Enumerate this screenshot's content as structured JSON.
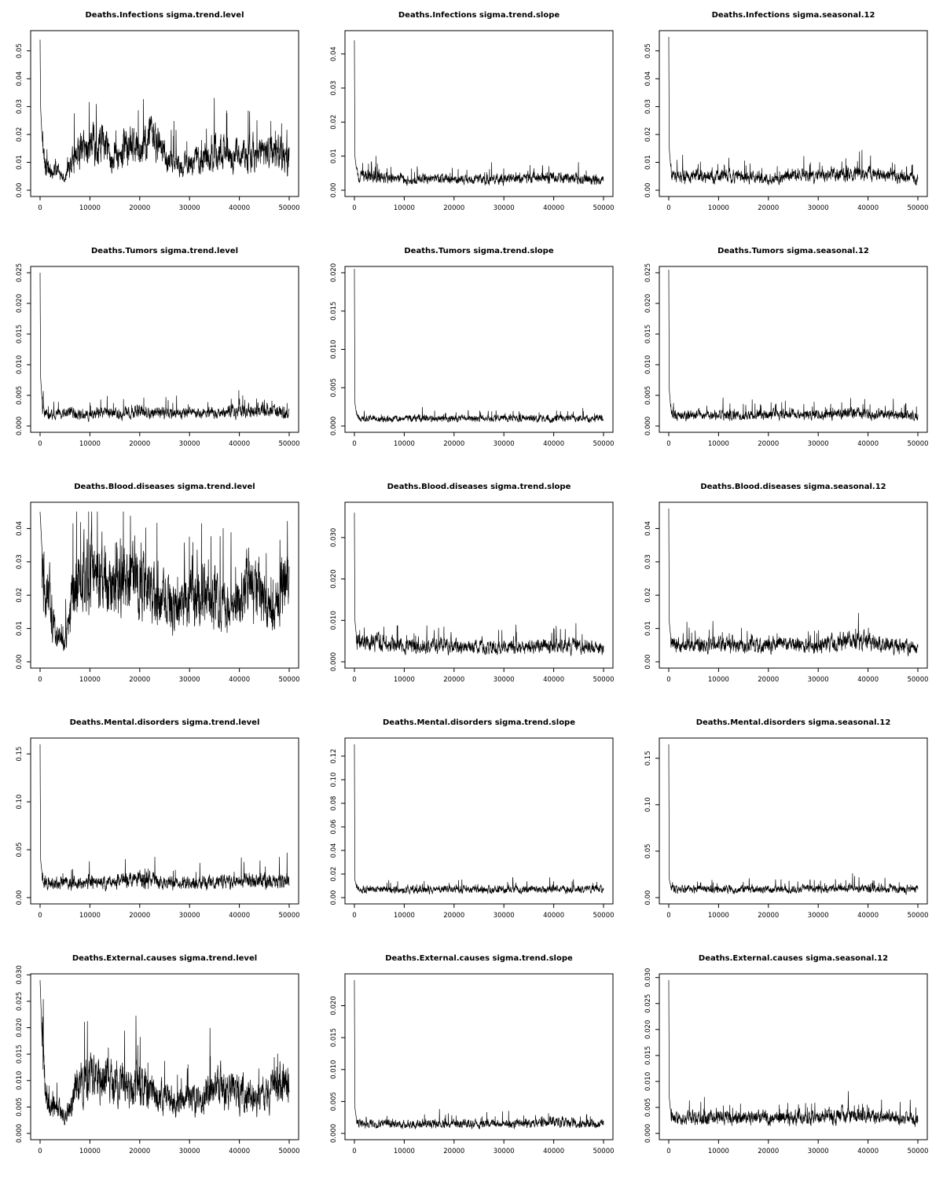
{
  "chart_data": [
    {
      "type": "line",
      "title": "Deaths.Infections sigma.trend.level",
      "xlim": [
        0,
        50000
      ],
      "ylim": [
        0,
        0.055
      ],
      "xticks": [
        "0",
        "10000",
        "20000",
        "30000",
        "40000",
        "50000"
      ],
      "yticks": [
        "0.00",
        "0.01",
        "0.02",
        "0.03",
        "0.04",
        "0.05"
      ],
      "series": [
        {
          "x": [
            0,
            100,
            500,
            1000,
            2000,
            3000,
            4000,
            5000,
            6000,
            7000,
            8000,
            10000,
            12000,
            14000,
            16000,
            18000,
            20000,
            22000,
            24000,
            26000,
            28000,
            30000,
            32000,
            34000,
            36000,
            38000,
            40000,
            42000,
            44000,
            46000,
            48000,
            49000,
            50000
          ],
          "y": [
            0.054,
            0.03,
            0.015,
            0.01,
            0.006,
            0.009,
            0.005,
            0.004,
            0.01,
            0.013,
            0.015,
            0.016,
            0.018,
            0.012,
            0.014,
            0.016,
            0.015,
            0.018,
            0.016,
            0.01,
            0.01,
            0.008,
            0.012,
            0.012,
            0.014,
            0.013,
            0.013,
            0.014,
            0.012,
            0.013,
            0.015,
            0.012,
            0.012
          ]
        }
      ]
    },
    {
      "type": "line",
      "title": "Deaths.Infections sigma.trend.slope",
      "xlim": [
        0,
        50000
      ],
      "ylim": [
        0,
        0.045
      ],
      "xticks": [
        "0",
        "10000",
        "20000",
        "30000",
        "40000",
        "50000"
      ],
      "yticks": [
        "0.00",
        "0.01",
        "0.02",
        "0.03",
        "0.04"
      ],
      "series": [
        {
          "x": [
            0,
            100,
            500,
            1000,
            5000,
            10000,
            15000,
            20000,
            25000,
            30000,
            35000,
            40000,
            45000,
            50000
          ],
          "y": [
            0.044,
            0.01,
            0.005,
            0.004,
            0.004,
            0.003,
            0.0035,
            0.003,
            0.003,
            0.0035,
            0.0035,
            0.004,
            0.0035,
            0.003
          ]
        }
      ]
    },
    {
      "type": "line",
      "title": "Deaths.Infections sigma.seasonal.12",
      "xlim": [
        0,
        50000
      ],
      "ylim": [
        0,
        0.055
      ],
      "xticks": [
        "0",
        "10000",
        "20000",
        "30000",
        "40000",
        "50000"
      ],
      "yticks": [
        "0.00",
        "0.01",
        "0.02",
        "0.03",
        "0.04",
        "0.05"
      ],
      "series": [
        {
          "x": [
            0,
            100,
            500,
            1000,
            5000,
            10000,
            15000,
            20000,
            25000,
            30000,
            35000,
            40000,
            45000,
            50000
          ],
          "y": [
            0.055,
            0.015,
            0.006,
            0.005,
            0.005,
            0.005,
            0.005,
            0.004,
            0.005,
            0.005,
            0.006,
            0.006,
            0.005,
            0.004
          ]
        }
      ]
    },
    {
      "type": "line",
      "title": "Deaths.Tumors sigma.trend.level",
      "xlim": [
        0,
        50000
      ],
      "ylim": [
        0,
        0.025
      ],
      "xticks": [
        "0",
        "10000",
        "20000",
        "30000",
        "40000",
        "50000"
      ],
      "yticks": [
        "0.000",
        "0.005",
        "0.010",
        "0.015",
        "0.020",
        "0.025"
      ],
      "series": [
        {
          "x": [
            0,
            100,
            500,
            1000,
            5000,
            10000,
            15000,
            20000,
            25000,
            30000,
            35000,
            40000,
            45000,
            50000
          ],
          "y": [
            0.025,
            0.008,
            0.003,
            0.002,
            0.002,
            0.002,
            0.002,
            0.0025,
            0.002,
            0.002,
            0.002,
            0.0025,
            0.0025,
            0.002
          ]
        }
      ]
    },
    {
      "type": "line",
      "title": "Deaths.Tumors sigma.trend.slope",
      "xlim": [
        0,
        50000
      ],
      "ylim": [
        0,
        0.02
      ],
      "xticks": [
        "0",
        "10000",
        "20000",
        "30000",
        "40000",
        "50000"
      ],
      "yticks": [
        "0.000",
        "0.005",
        "0.010",
        "0.015",
        "0.020"
      ],
      "series": [
        {
          "x": [
            0,
            100,
            500,
            1000,
            5000,
            10000,
            15000,
            20000,
            25000,
            30000,
            35000,
            40000,
            45000,
            50000
          ],
          "y": [
            0.0205,
            0.003,
            0.0012,
            0.001,
            0.001,
            0.001,
            0.001,
            0.001,
            0.001,
            0.001,
            0.001,
            0.001,
            0.001,
            0.001
          ]
        }
      ]
    },
    {
      "type": "line",
      "title": "Deaths.Tumors sigma.seasonal.12",
      "xlim": [
        0,
        50000
      ],
      "ylim": [
        0,
        0.025
      ],
      "xticks": [
        "0",
        "10000",
        "20000",
        "30000",
        "40000",
        "50000"
      ],
      "yticks": [
        "0.000",
        "0.005",
        "0.010",
        "0.015",
        "0.020",
        "0.025"
      ],
      "series": [
        {
          "x": [
            0,
            100,
            500,
            1000,
            5000,
            10000,
            15000,
            20000,
            25000,
            30000,
            35000,
            40000,
            45000,
            50000
          ],
          "y": [
            0.0255,
            0.006,
            0.002,
            0.0018,
            0.0018,
            0.0018,
            0.0018,
            0.0018,
            0.0018,
            0.0018,
            0.002,
            0.002,
            0.0018,
            0.0016
          ]
        }
      ]
    },
    {
      "type": "line",
      "title": "Deaths.Blood.diseases sigma.trend.level",
      "xlim": [
        0,
        50000
      ],
      "ylim": [
        0,
        0.046
      ],
      "xticks": [
        "0",
        "10000",
        "20000",
        "30000",
        "40000",
        "50000"
      ],
      "yticks": [
        "0.00",
        "0.01",
        "0.02",
        "0.03",
        "0.04"
      ],
      "series": [
        {
          "x": [
            0,
            500,
            1000,
            2000,
            3000,
            4000,
            5000,
            6000,
            7000,
            8000,
            10000,
            12000,
            14000,
            16000,
            18000,
            20000,
            22000,
            24000,
            26000,
            28000,
            30000,
            32000,
            34000,
            36000,
            38000,
            40000,
            42000,
            44000,
            46000,
            48000,
            49000,
            50000
          ],
          "y": [
            0.045,
            0.03,
            0.018,
            0.02,
            0.01,
            0.008,
            0.006,
            0.015,
            0.022,
            0.025,
            0.026,
            0.024,
            0.022,
            0.025,
            0.023,
            0.024,
            0.022,
            0.02,
            0.018,
            0.015,
            0.022,
            0.02,
            0.018,
            0.02,
            0.015,
            0.018,
            0.024,
            0.022,
            0.015,
            0.02,
            0.025,
            0.02
          ]
        }
      ]
    },
    {
      "type": "line",
      "title": "Deaths.Blood.diseases sigma.trend.slope",
      "xlim": [
        0,
        50000
      ],
      "ylim": [
        0,
        0.037
      ],
      "xticks": [
        "0",
        "10000",
        "20000",
        "30000",
        "40000",
        "50000"
      ],
      "yticks": [
        "0.000",
        "0.010",
        "0.020",
        "0.030"
      ],
      "series": [
        {
          "x": [
            0,
            100,
            500,
            1000,
            5000,
            10000,
            15000,
            20000,
            25000,
            30000,
            35000,
            40000,
            45000,
            50000
          ],
          "y": [
            0.036,
            0.01,
            0.005,
            0.004,
            0.005,
            0.004,
            0.004,
            0.004,
            0.0035,
            0.0035,
            0.0035,
            0.004,
            0.004,
            0.003
          ]
        }
      ]
    },
    {
      "type": "line",
      "title": "Deaths.Blood.diseases sigma.seasonal.12",
      "xlim": [
        0,
        50000
      ],
      "ylim": [
        0,
        0.046
      ],
      "xticks": [
        "0",
        "10000",
        "20000",
        "30000",
        "40000",
        "50000"
      ],
      "yticks": [
        "0.00",
        "0.01",
        "0.02",
        "0.03",
        "0.04"
      ],
      "series": [
        {
          "x": [
            0,
            100,
            500,
            1000,
            5000,
            10000,
            15000,
            20000,
            25000,
            30000,
            35000,
            40000,
            45000,
            50000
          ],
          "y": [
            0.046,
            0.012,
            0.006,
            0.005,
            0.005,
            0.005,
            0.005,
            0.005,
            0.005,
            0.005,
            0.006,
            0.006,
            0.005,
            0.004
          ]
        }
      ]
    },
    {
      "type": "line",
      "title": "Deaths.Mental.disorders sigma.trend.level",
      "xlim": [
        0,
        50000
      ],
      "ylim": [
        0,
        0.16
      ],
      "xticks": [
        "0",
        "10000",
        "20000",
        "30000",
        "40000",
        "50000"
      ],
      "yticks": [
        "0.00",
        "0.05",
        "0.10",
        "0.15"
      ],
      "series": [
        {
          "x": [
            0,
            100,
            500,
            1000,
            5000,
            10000,
            15000,
            20000,
            25000,
            30000,
            35000,
            40000,
            45000,
            50000
          ],
          "y": [
            0.16,
            0.04,
            0.02,
            0.015,
            0.015,
            0.016,
            0.016,
            0.02,
            0.016,
            0.015,
            0.016,
            0.017,
            0.017,
            0.018
          ]
        }
      ]
    },
    {
      "type": "line",
      "title": "Deaths.Mental.disorders sigma.trend.slope",
      "xlim": [
        0,
        50000
      ],
      "ylim": [
        0,
        0.13
      ],
      "xticks": [
        "0",
        "10000",
        "20000",
        "30000",
        "40000",
        "50000"
      ],
      "yticks": [
        "0.00",
        "0.02",
        "0.04",
        "0.06",
        "0.08",
        "0.10",
        "0.12"
      ],
      "series": [
        {
          "x": [
            0,
            100,
            500,
            1000,
            5000,
            10000,
            15000,
            20000,
            25000,
            30000,
            35000,
            40000,
            45000,
            50000
          ],
          "y": [
            0.13,
            0.015,
            0.008,
            0.007,
            0.007,
            0.007,
            0.007,
            0.007,
            0.007,
            0.007,
            0.007,
            0.007,
            0.007,
            0.007
          ]
        }
      ]
    },
    {
      "type": "line",
      "title": "Deaths.Mental.disorders sigma.seasonal.12",
      "xlim": [
        0,
        50000
      ],
      "ylim": [
        0,
        0.165
      ],
      "xticks": [
        "0",
        "10000",
        "20000",
        "30000",
        "40000",
        "50000"
      ],
      "yticks": [
        "0.00",
        "0.05",
        "0.10",
        "0.15"
      ],
      "series": [
        {
          "x": [
            0,
            100,
            500,
            1000,
            5000,
            10000,
            15000,
            20000,
            25000,
            30000,
            35000,
            40000,
            45000,
            50000
          ],
          "y": [
            0.165,
            0.02,
            0.01,
            0.009,
            0.009,
            0.009,
            0.009,
            0.009,
            0.009,
            0.009,
            0.01,
            0.01,
            0.009,
            0.009
          ]
        }
      ]
    },
    {
      "type": "line",
      "title": "Deaths.External.causes sigma.trend.level",
      "xlim": [
        0,
        50000
      ],
      "ylim": [
        0,
        0.029
      ],
      "xticks": [
        "0",
        "10000",
        "20000",
        "30000",
        "40000",
        "50000"
      ],
      "yticks": [
        "0.000",
        "0.005",
        "0.010",
        "0.015",
        "0.020",
        "0.025",
        "0.030"
      ],
      "series": [
        {
          "x": [
            0,
            500,
            1000,
            2000,
            3000,
            4000,
            5000,
            6000,
            7000,
            8000,
            10000,
            12000,
            14000,
            16000,
            18000,
            20000,
            22000,
            24000,
            26000,
            28000,
            30000,
            32000,
            34000,
            36000,
            38000,
            40000,
            42000,
            44000,
            46000,
            48000,
            49000,
            50000
          ],
          "y": [
            0.029,
            0.015,
            0.008,
            0.004,
            0.006,
            0.004,
            0.003,
            0.005,
            0.008,
            0.009,
            0.01,
            0.011,
            0.009,
            0.01,
            0.008,
            0.01,
            0.008,
            0.007,
            0.006,
            0.006,
            0.007,
            0.006,
            0.008,
            0.009,
            0.008,
            0.008,
            0.007,
            0.006,
            0.008,
            0.009,
            0.01,
            0.008
          ]
        }
      ]
    },
    {
      "type": "line",
      "title": "Deaths.External.causes sigma.trend.slope",
      "xlim": [
        0,
        50000
      ],
      "ylim": [
        0,
        0.024
      ],
      "xticks": [
        "0",
        "10000",
        "20000",
        "30000",
        "40000",
        "50000"
      ],
      "yticks": [
        "0.000",
        "0.005",
        "0.010",
        "0.015",
        "0.020"
      ],
      "series": [
        {
          "x": [
            0,
            100,
            500,
            1000,
            5000,
            10000,
            15000,
            20000,
            25000,
            30000,
            35000,
            40000,
            45000,
            50000
          ],
          "y": [
            0.024,
            0.004,
            0.0018,
            0.0015,
            0.0015,
            0.0015,
            0.0015,
            0.0015,
            0.0015,
            0.0015,
            0.0015,
            0.0018,
            0.0016,
            0.0014
          ]
        }
      ]
    },
    {
      "type": "line",
      "title": "Deaths.External.causes sigma.seasonal.12",
      "xlim": [
        0,
        50000
      ],
      "ylim": [
        0,
        0.0295
      ],
      "xticks": [
        "0",
        "10000",
        "20000",
        "30000",
        "40000",
        "50000"
      ],
      "yticks": [
        "0.000",
        "0.005",
        "0.010",
        "0.015",
        "0.020",
        "0.025",
        "0.030"
      ],
      "series": [
        {
          "x": [
            0,
            100,
            500,
            1000,
            5000,
            10000,
            15000,
            20000,
            25000,
            30000,
            35000,
            40000,
            45000,
            50000
          ],
          "y": [
            0.0295,
            0.007,
            0.003,
            0.0028,
            0.003,
            0.003,
            0.003,
            0.003,
            0.003,
            0.003,
            0.0035,
            0.0035,
            0.003,
            0.0025
          ]
        }
      ]
    }
  ]
}
